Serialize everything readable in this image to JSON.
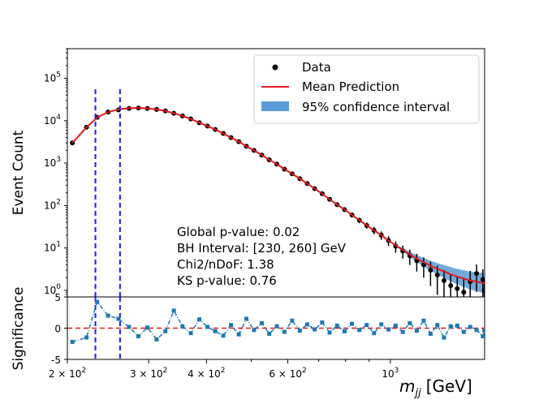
{
  "chart_data": [
    {
      "type": "scatter",
      "title": "",
      "ylabel": "Event Count",
      "xscale": "log",
      "yscale": "log",
      "xlim": [
        200,
        1600
      ],
      "ylim": [
        0.7,
        500000
      ],
      "x_ticks": {
        "major": [
          {
            "value": 200,
            "base": "2 × 10",
            "exp": "2"
          },
          {
            "value": 300,
            "base": "3 × 10",
            "exp": "2"
          },
          {
            "value": 400,
            "base": "4 × 10",
            "exp": "2"
          },
          {
            "value": 600,
            "base": "6 × 10",
            "exp": "2"
          },
          {
            "value": 1000,
            "base": "10",
            "exp": "3"
          }
        ]
      },
      "y_ticks": [
        {
          "value": 1,
          "base": "10",
          "exp": "0"
        },
        {
          "value": 10,
          "base": "10",
          "exp": "1"
        },
        {
          "value": 100,
          "base": "10",
          "exp": "2"
        },
        {
          "value": 1000,
          "base": "10",
          "exp": "3"
        },
        {
          "value": 10000,
          "base": "10",
          "exp": "4"
        },
        {
          "value": 100000,
          "base": "10",
          "exp": "5"
        }
      ],
      "legend": {
        "position": "top-right",
        "entries": [
          {
            "label": "Data",
            "marker": "dot",
            "color": "#000000"
          },
          {
            "label": "Mean Prediction",
            "marker": "line",
            "color": "#e31a1c"
          },
          {
            "label": "95% confidence interval",
            "marker": "patch",
            "color": "#5b9bd5"
          }
        ]
      },
      "series": [
        {
          "name": "Data",
          "x": [
            205,
            220,
            232,
            245,
            258,
            272,
            285,
            298,
            312,
            326,
            340,
            355,
            370,
            386,
            402,
            418,
            435,
            452,
            470,
            488,
            507,
            527,
            547,
            568,
            590,
            613,
            637,
            661,
            686,
            712,
            739,
            767,
            796,
            826,
            857,
            889,
            922,
            956,
            991,
            1027,
            1064,
            1102,
            1141,
            1181,
            1222,
            1264,
            1307,
            1351,
            1396,
            1442,
            1489,
            1537,
            1586,
            1598
          ],
          "y": [
            3000,
            7000,
            12000,
            16000,
            18000,
            19500,
            20000,
            19500,
            18500,
            17000,
            15000,
            13000,
            11000,
            9000,
            7500,
            6200,
            5000,
            4000,
            3200,
            2500,
            2000,
            1550,
            1200,
            950,
            720,
            560,
            430,
            330,
            250,
            190,
            140,
            105,
            80,
            60,
            45,
            34,
            26,
            20,
            15,
            11,
            8.5,
            6.5,
            5,
            4,
            3,
            2.3,
            1.7,
            1.3,
            1.1,
            0.9,
            1.6,
            2.5,
            1.8,
            1.0
          ]
        },
        {
          "name": "Mean Prediction",
          "x": [
            205,
            220,
            232,
            245,
            258,
            272,
            285,
            298,
            312,
            326,
            340,
            355,
            370,
            386,
            402,
            418,
            435,
            452,
            470,
            488,
            507,
            527,
            547,
            568,
            590,
            613,
            637,
            661,
            686,
            712,
            739,
            767,
            796,
            826,
            857,
            889,
            922,
            956,
            991,
            1027,
            1064,
            1102,
            1141,
            1181,
            1222,
            1264,
            1307,
            1351,
            1396,
            1442,
            1489,
            1537,
            1586,
            1600
          ],
          "y": [
            3000,
            7000,
            12000,
            16000,
            18500,
            19800,
            20000,
            19500,
            18500,
            17000,
            15000,
            13000,
            11000,
            9000,
            7500,
            6200,
            5000,
            4000,
            3200,
            2500,
            2000,
            1550,
            1200,
            950,
            720,
            560,
            430,
            330,
            250,
            190,
            140,
            105,
            80,
            60,
            45,
            34,
            26,
            20,
            15,
            11.5,
            9,
            7,
            5.6,
            4.6,
            3.8,
            3.2,
            2.8,
            2.4,
            2.1,
            1.9,
            1.7,
            1.6,
            1.5,
            1.5
          ]
        }
      ],
      "annotations": [
        "Global p-value: 0.02",
        "BH Interval: [230, 260] GeV",
        "Chi2/nDoF: 1.38",
        "KS p-value: 0.76"
      ],
      "vlines": [
        230,
        260
      ]
    },
    {
      "type": "line",
      "ylabel": "Significance",
      "xlabel_main": "m",
      "xlabel_sub": "jj",
      "xlabel_unit": "[GeV]",
      "ylim": [
        -5,
        5
      ],
      "y_ticks": [
        -5,
        0,
        5
      ],
      "hline": 0,
      "series": [
        {
          "name": "Significance",
          "x": [
            205,
            220,
            232,
            245,
            258,
            272,
            285,
            298,
            312,
            326,
            340,
            355,
            370,
            386,
            402,
            418,
            435,
            452,
            470,
            488,
            507,
            527,
            547,
            568,
            590,
            613,
            637,
            661,
            686,
            712,
            739,
            767,
            796,
            826,
            857,
            889,
            922,
            956,
            991,
            1027,
            1064,
            1102,
            1141,
            1181,
            1222,
            1264,
            1307,
            1351,
            1396,
            1442,
            1489,
            1537,
            1586,
            1598
          ],
          "y": [
            -2.2,
            -1.5,
            4.2,
            2.0,
            1.5,
            0.2,
            -1.3,
            0.1,
            -1.8,
            -0.5,
            2.8,
            0.3,
            -0.8,
            1.4,
            0.2,
            -0.5,
            -1.2,
            0.5,
            -1.0,
            1.5,
            -0.3,
            0.8,
            -0.9,
            0.3,
            -0.6,
            1.2,
            -0.4,
            0.6,
            -0.2,
            0.9,
            -0.7,
            0.4,
            -0.5,
            0.7,
            -0.3,
            0.5,
            -0.8,
            0.6,
            -0.2,
            0.4,
            -0.6,
            0.8,
            -0.4,
            1.2,
            -0.9,
            0.5,
            -1.5,
            0.3,
            0.4,
            -0.6,
            0.2,
            -0.3,
            -1.3,
            -0.4
          ]
        }
      ],
      "vlines": [
        230,
        260
      ]
    }
  ]
}
